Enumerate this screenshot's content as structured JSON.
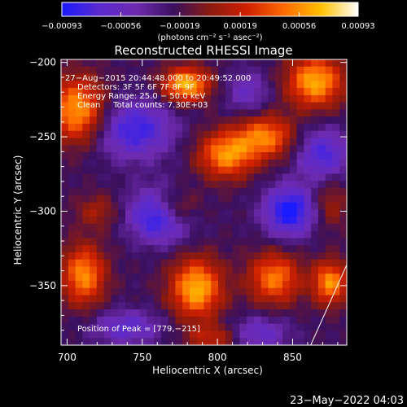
{
  "chart_data": {
    "type": "heatmap",
    "title": "Reconstructed RHESSI Image",
    "xlabel": "Heliocentric X (arcsec)",
    "ylabel": "Heliocentric Y (arcsec)",
    "xlim": [
      696,
      886
    ],
    "ylim": [
      -390,
      -198
    ],
    "x_ticks": [
      700,
      750,
      800,
      850
    ],
    "y_ticks": [
      -200,
      -250,
      -300,
      -350
    ],
    "x_tick_labels": [
      "700",
      "750",
      "800",
      "850"
    ],
    "y_tick_labels": [
      "−200",
      "−250",
      "−300",
      "−350"
    ],
    "colorbar": {
      "range": [
        -0.00093,
        0.00093
      ],
      "ticks": [
        -0.00093,
        -0.00056,
        -0.00019,
        0.00019,
        0.00056,
        0.00093
      ],
      "tick_labels": [
        "−0.00093",
        "−0.00056",
        "−0.00019",
        "0.00019",
        "0.00056",
        "0.00093"
      ],
      "unit": "(photons cm⁻² s⁻¹ asec⁻²)",
      "colors": [
        "#1a1aff",
        "#5a2ad0",
        "#6e2bb0",
        "#3a1060",
        "#8a1a10",
        "#d02000",
        "#ff6a00",
        "#ffc000",
        "#ffffff"
      ]
    },
    "annotations": {
      "time": "27−Aug−2015 20:44:48.000 to 20:49:52.000",
      "detectors": "Detectors: 3F 5F 6F 7F 8F 9F",
      "energy": "Energy Range: 25.0 − 50.0 keV",
      "method": "Clean     Total counts: 7.30E+03",
      "peak": "Position of Peak = [779,−215]"
    },
    "limb_line": [
      [
        862,
        -390
      ],
      [
        886,
        -336
      ]
    ],
    "grid": false,
    "components": [
      {
        "x": 707,
        "y": -232,
        "sx": 13,
        "sy": 15,
        "amp": 0.00085
      },
      {
        "x": 779,
        "y": -215,
        "sx": 11,
        "sy": 8,
        "amp": 0.00093
      },
      {
        "x": 865,
        "y": -213,
        "sx": 13,
        "sy": 12,
        "amp": 0.00088
      },
      {
        "x": 806,
        "y": -262,
        "sx": 13,
        "sy": 11,
        "amp": 0.0008
      },
      {
        "x": 832,
        "y": -250,
        "sx": 13,
        "sy": 10,
        "amp": 0.00072
      },
      {
        "x": 771,
        "y": -298,
        "sx": 11,
        "sy": 9,
        "amp": 0.0007
      },
      {
        "x": 786,
        "y": -352,
        "sx": 12,
        "sy": 14,
        "amp": 0.0009
      },
      {
        "x": 711,
        "y": -343,
        "sx": 10,
        "sy": 14,
        "amp": 0.00078
      },
      {
        "x": 838,
        "y": -345,
        "sx": 12,
        "sy": 12,
        "amp": 0.00072
      },
      {
        "x": 875,
        "y": -348,
        "sx": 8,
        "sy": 10,
        "amp": 0.0008
      },
      {
        "x": 720,
        "y": -300,
        "sx": 10,
        "sy": 8,
        "amp": 0.0003
      },
      {
        "x": 797,
        "y": -385,
        "sx": 12,
        "sy": 6,
        "amp": 0.0004
      },
      {
        "x": 875,
        "y": -295,
        "sx": 8,
        "sy": 12,
        "amp": 0.0003
      },
      {
        "x": 763,
        "y": -302,
        "sx": 14,
        "sy": 12,
        "amp": -0.00093
      },
      {
        "x": 745,
        "y": -245,
        "sx": 18,
        "sy": 14,
        "amp": -0.0006
      },
      {
        "x": 848,
        "y": -300,
        "sx": 12,
        "sy": 12,
        "amp": -0.00075
      },
      {
        "x": 870,
        "y": -262,
        "sx": 12,
        "sy": 12,
        "amp": -0.00055
      },
      {
        "x": 740,
        "y": -378,
        "sx": 16,
        "sy": 8,
        "amp": -0.00045
      },
      {
        "x": 828,
        "y": -382,
        "sx": 14,
        "sy": 8,
        "amp": -0.0004
      },
      {
        "x": 820,
        "y": -220,
        "sx": 10,
        "sy": 10,
        "amp": -0.00035
      }
    ]
  },
  "footer": {
    "timestamp": "23−May−2022 04:03"
  }
}
